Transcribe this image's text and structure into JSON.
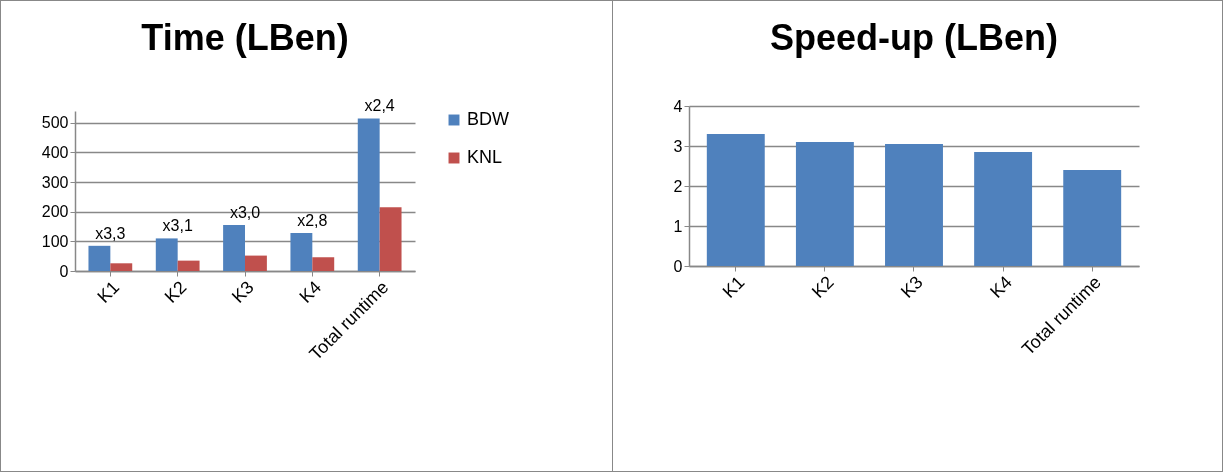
{
  "chart_data": [
    {
      "type": "bar",
      "title": "Time (LBen)",
      "categories": [
        "K1",
        "K2",
        "K3",
        "K4",
        "Total runtime"
      ],
      "series": [
        {
          "name": "BDW",
          "color": "#4f81bd",
          "values": [
            85,
            110,
            155,
            128,
            515
          ]
        },
        {
          "name": "KNL",
          "color": "#c0504d",
          "values": [
            26,
            35,
            52,
            46,
            215
          ]
        }
      ],
      "ylim": [
        0,
        540
      ],
      "yticks": [
        0,
        100,
        200,
        300,
        400,
        500
      ],
      "grid": "y",
      "legend": "right",
      "annotations": [
        {
          "text": "x3,3",
          "x": "K1",
          "y": 85
        },
        {
          "text": "x3,1",
          "x": "K2",
          "y": 110
        },
        {
          "text": "x3,0",
          "x": "K3",
          "y": 155
        },
        {
          "text": "x2,8",
          "x": "K4",
          "y": 128
        },
        {
          "text": "x2,4",
          "x": "Total runtime",
          "y": 515
        }
      ]
    },
    {
      "type": "bar",
      "title": "Speed-up (LBen)",
      "categories": [
        "K1",
        "K2",
        "K3",
        "K4",
        "Total runtime"
      ],
      "series": [
        {
          "color": "#4f81bd",
          "values": [
            3.3,
            3.1,
            3.05,
            2.85,
            2.4
          ]
        }
      ],
      "ylim": [
        0,
        4
      ],
      "yticks": [
        0,
        1,
        2,
        3,
        4
      ],
      "grid": "y",
      "legend": false
    }
  ]
}
